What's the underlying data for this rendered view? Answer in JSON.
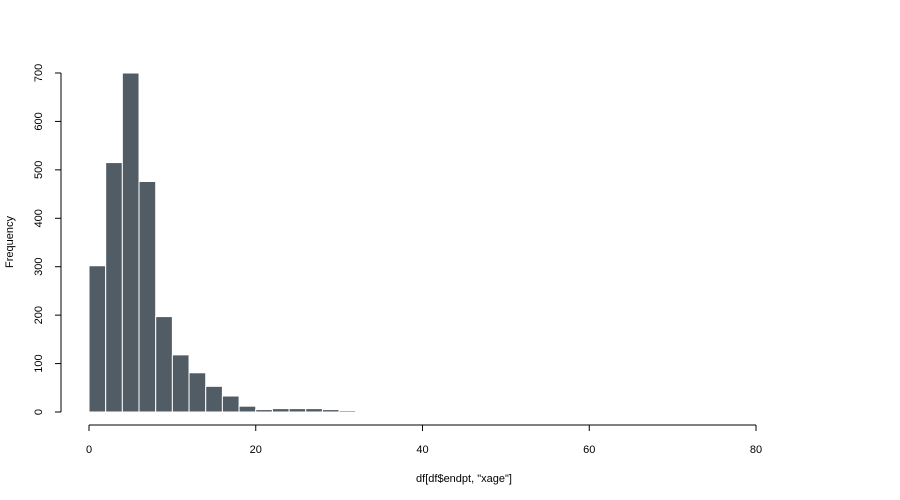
{
  "chart_data": {
    "type": "bar",
    "title": "",
    "xlabel": "df[df$endpt, \"xage\"]",
    "ylabel": "Frequency",
    "bin_width": 2,
    "bins_start": [
      0,
      2,
      4,
      6,
      8,
      10,
      12,
      14,
      16,
      18,
      20,
      22,
      24,
      26,
      28,
      30,
      32,
      34,
      36,
      38,
      40,
      42,
      44,
      46,
      48,
      50,
      52,
      54
    ],
    "values": [
      302,
      515,
      700,
      476,
      197,
      118,
      81,
      53,
      33,
      12,
      5,
      7,
      7,
      7,
      5,
      3,
      1,
      1,
      0,
      0,
      1,
      0,
      0,
      0,
      0,
      0,
      0,
      1
    ],
    "xlim": [
      0,
      80
    ],
    "ylim": [
      0,
      700
    ],
    "x_ticks": [
      "0",
      "20",
      "40",
      "60",
      "80"
    ],
    "y_ticks": [
      "0",
      "100",
      "200",
      "300",
      "400",
      "500",
      "600",
      "700"
    ],
    "bar_color": "#525c65",
    "grid": false
  }
}
